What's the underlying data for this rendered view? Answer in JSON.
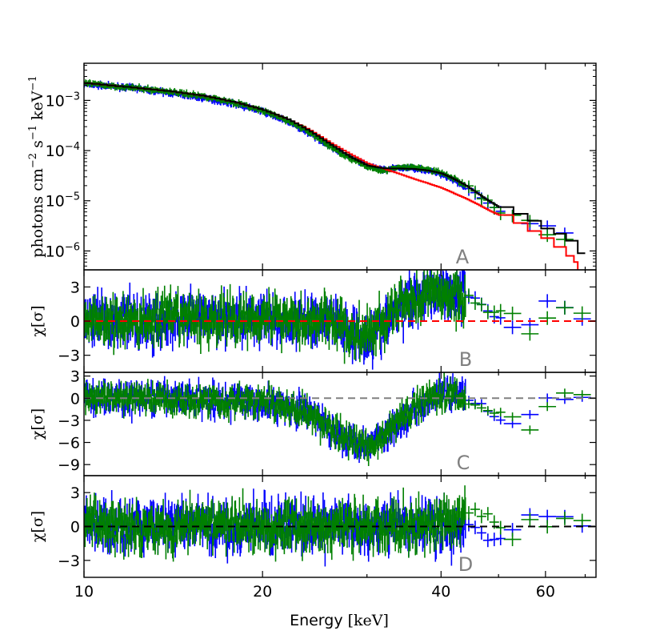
{
  "chart_data": [
    {
      "panel": "A",
      "type": "line",
      "xscale": "log",
      "yscale": "log",
      "xlim": [
        10,
        73
      ],
      "ylim": [
        4.2e-07,
        0.0055
      ],
      "ylabel": "photons cm⁻² s⁻¹ keV⁻¹",
      "ytick_labels": [
        "10⁻³",
        "10⁻⁴",
        "10⁻⁵",
        "10⁻⁶"
      ],
      "yticks": [
        0.001,
        0.0001,
        1e-05,
        1e-06
      ],
      "tag": "A",
      "series": [
        {
          "color": "#0000ff",
          "style": "data",
          "x": [
            10,
            12,
            14,
            16,
            18,
            20,
            22,
            24,
            26,
            28,
            30,
            32,
            34,
            36,
            38,
            40,
            42,
            44,
            46,
            48,
            50,
            55,
            60,
            65
          ],
          "y": [
            0.0021,
            0.0018,
            0.0014,
            0.0011,
            0.00085,
            0.0006,
            0.00038,
            0.00022,
            0.00012,
            7.5e-05,
            5e-05,
            4.2e-05,
            4.5e-05,
            4.5e-05,
            4e-05,
            3.4e-05,
            2.6e-05,
            1.8e-05,
            1.2e-05,
            8e-06,
            5.5e-06,
            3.2e-06,
            3e-06,
            1.6e-06
          ]
        },
        {
          "color": "#008000",
          "style": "data",
          "x": [
            10,
            12,
            14,
            16,
            18,
            20,
            22,
            24,
            26,
            28,
            30,
            32,
            34,
            36,
            38,
            40,
            42,
            44,
            46,
            48,
            50,
            55,
            60,
            65
          ],
          "y": [
            0.0022,
            0.0018,
            0.0015,
            0.0012,
            0.0009,
            0.00062,
            0.0004,
            0.00023,
            0.00012,
            7e-05,
            4.8e-05,
            4e-05,
            4.6e-05,
            4.7e-05,
            4.2e-05,
            3.6e-05,
            2.8e-05,
            2e-05,
            1.2e-05,
            8.5e-06,
            5.5e-06,
            4e-06,
            1.5e-06,
            2.2e-06
          ]
        },
        {
          "color": "#ff0000",
          "style": "step",
          "x": [
            10,
            12,
            14,
            16,
            18,
            20,
            22,
            24,
            26,
            28,
            30,
            32,
            34,
            36,
            38,
            40,
            42,
            44,
            46,
            48,
            50,
            53,
            56,
            59,
            62,
            65,
            67,
            68,
            70
          ],
          "y": [
            0.0022,
            0.0018,
            0.0015,
            0.0012,
            0.0009,
            0.00064,
            0.00042,
            0.00025,
            0.00014,
            8.5e-05,
            5.5e-05,
            4.3e-05,
            3.4e-05,
            2.7e-05,
            2.2e-05,
            1.8e-05,
            1.4e-05,
            1.1e-05,
            8.5e-06,
            6.5e-06,
            5.2e-06,
            3.6e-06,
            2.5e-06,
            1.8e-06,
            1.2e-06,
            8e-07,
            6e-07,
            4e-07,
            4e-07
          ]
        },
        {
          "color": "#000000",
          "style": "step",
          "x": [
            10,
            12,
            14,
            16,
            18,
            20,
            22,
            24,
            26,
            28,
            30,
            32,
            34,
            36,
            38,
            40,
            42,
            44,
            46,
            48,
            50,
            53,
            56,
            59,
            62,
            65,
            68,
            70
          ],
          "y": [
            0.0022,
            0.0018,
            0.0015,
            0.0012,
            0.0009,
            0.00064,
            0.00042,
            0.00024,
            0.00013,
            7.5e-05,
            5e-05,
            4.4e-05,
            4.4e-05,
            4.3e-05,
            4e-05,
            3.5e-05,
            2.7e-05,
            2e-05,
            1.4e-05,
            1e-05,
            7.5e-06,
            5.5e-06,
            4e-06,
            2.8e-06,
            2.2e-06,
            1.6e-06,
            9e-07,
            9e-07
          ]
        }
      ]
    },
    {
      "panel": "B",
      "type": "line",
      "xscale": "log",
      "xlim": [
        10,
        73
      ],
      "ylim": [
        -4.5,
        4.5
      ],
      "ylabel": "χ[σ]",
      "yticks": [
        3,
        0,
        -3
      ],
      "ytick_labels": [
        "3",
        "0",
        "−3"
      ],
      "reference_line": {
        "y": 0,
        "color": "#ff0000"
      },
      "tag": "B",
      "series": [
        {
          "color": "#0000ff",
          "x": [
            10,
            12,
            14,
            16,
            18,
            20,
            22,
            24,
            26,
            28,
            30,
            32,
            34,
            36,
            38,
            40,
            42,
            45,
            48,
            52,
            55,
            60,
            64,
            68
          ],
          "y": [
            0.3,
            0.1,
            -0.2,
            0.2,
            0.4,
            0.2,
            -0.1,
            0.1,
            0.3,
            -0.9,
            -1.5,
            -0.4,
            1.2,
            2.1,
            2.6,
            2.8,
            2.5,
            2.2,
            0.8,
            -0.6,
            0.2,
            1.9,
            0.9,
            -0.3
          ]
        },
        {
          "color": "#008000",
          "x": [
            10,
            12,
            14,
            16,
            18,
            20,
            22,
            24,
            26,
            28,
            30,
            32,
            34,
            36,
            38,
            40,
            42,
            45,
            48,
            52,
            55,
            60,
            64,
            68
          ],
          "y": [
            0.2,
            -0.1,
            0.3,
            0.1,
            0.2,
            0.5,
            0.3,
            0.0,
            0.2,
            -1.1,
            -1.3,
            -0.2,
            1.4,
            1.9,
            2.4,
            2.6,
            2.0,
            1.8,
            1.2,
            0.1,
            -1.4,
            0.8,
            2.0,
            0.8
          ]
        }
      ]
    },
    {
      "panel": "C",
      "type": "line",
      "xscale": "log",
      "xlim": [
        10,
        73
      ],
      "ylim": [
        -10.5,
        3.5
      ],
      "ylabel": "χ[σ]",
      "yticks": [
        3,
        0,
        -3,
        -6,
        -9
      ],
      "ytick_labels": [
        "3",
        "0",
        "−3",
        "−6",
        "−9"
      ],
      "reference_line": {
        "y": 0,
        "color": "#808080"
      },
      "tag": "C",
      "series": [
        {
          "color": "#0000ff",
          "x": [
            10,
            12,
            14,
            16,
            18,
            20,
            22,
            24,
            26,
            28,
            30,
            32,
            34,
            36,
            38,
            40,
            42,
            45,
            48,
            52,
            55,
            60,
            64,
            68
          ],
          "y": [
            0.2,
            -0.1,
            0.1,
            -0.2,
            -0.3,
            -0.6,
            -1.0,
            -2.0,
            -4.2,
            -5.6,
            -6.1,
            -5.0,
            -3.4,
            -1.6,
            0.0,
            1.0,
            0.6,
            -0.5,
            -2.0,
            -4.5,
            -2.5,
            1.0,
            0.3,
            -0.2
          ]
        },
        {
          "color": "#008000",
          "x": [
            10,
            12,
            14,
            16,
            18,
            20,
            22,
            24,
            26,
            28,
            30,
            32,
            34,
            36,
            38,
            40,
            42,
            45,
            48,
            52,
            55,
            60,
            64,
            68
          ],
          "y": [
            0.1,
            0.0,
            -0.1,
            -0.2,
            -0.4,
            -0.5,
            -1.2,
            -2.3,
            -4.0,
            -5.8,
            -6.4,
            -5.2,
            -3.0,
            -1.2,
            0.2,
            0.8,
            0.4,
            -0.9,
            -1.8,
            -2.5,
            -4.3,
            1.2,
            0.5,
            0.3
          ]
        }
      ]
    },
    {
      "panel": "D",
      "type": "line",
      "xscale": "log",
      "xlim": [
        10,
        73
      ],
      "ylim": [
        -4.5,
        4.5
      ],
      "ylabel": "χ[σ]",
      "xlabel": "Energy [keV]",
      "xticks": [
        10,
        20,
        40,
        60
      ],
      "xtick_labels": [
        "10",
        "20",
        "40",
        "60"
      ],
      "yticks": [
        3,
        0,
        -3
      ],
      "ytick_labels": [
        "3",
        "0",
        "−3"
      ],
      "reference_line": {
        "y": 0,
        "color": "#000000"
      },
      "tag": "D",
      "series": [
        {
          "color": "#0000ff",
          "x": [
            10,
            12,
            14,
            16,
            18,
            20,
            22,
            24,
            26,
            28,
            30,
            32,
            34,
            36,
            38,
            40,
            42,
            45,
            48,
            52,
            55,
            60,
            64,
            68
          ],
          "y": [
            0.2,
            -0.1,
            0.3,
            0.0,
            -0.2,
            0.1,
            0.3,
            -0.2,
            0.1,
            0.0,
            -0.3,
            0.2,
            0.1,
            -0.1,
            0.3,
            0.0,
            -0.2,
            0.2,
            -1.8,
            0.3,
            1.5,
            1.0,
            0.6,
            -0.1
          ]
        },
        {
          "color": "#008000",
          "x": [
            10,
            12,
            14,
            16,
            18,
            20,
            22,
            24,
            26,
            28,
            30,
            32,
            34,
            36,
            38,
            40,
            42,
            45,
            48,
            52,
            55,
            60,
            64,
            68
          ],
          "y": [
            0.1,
            0.2,
            -0.2,
            0.3,
            0.1,
            -0.1,
            0.2,
            0.1,
            -0.2,
            0.2,
            0.1,
            -0.3,
            0.2,
            0.1,
            -0.2,
            0.3,
            0.6,
            1.5,
            0.9,
            -2.0,
            0.5,
            0.3,
            0.7,
            0.2
          ]
        }
      ]
    }
  ]
}
